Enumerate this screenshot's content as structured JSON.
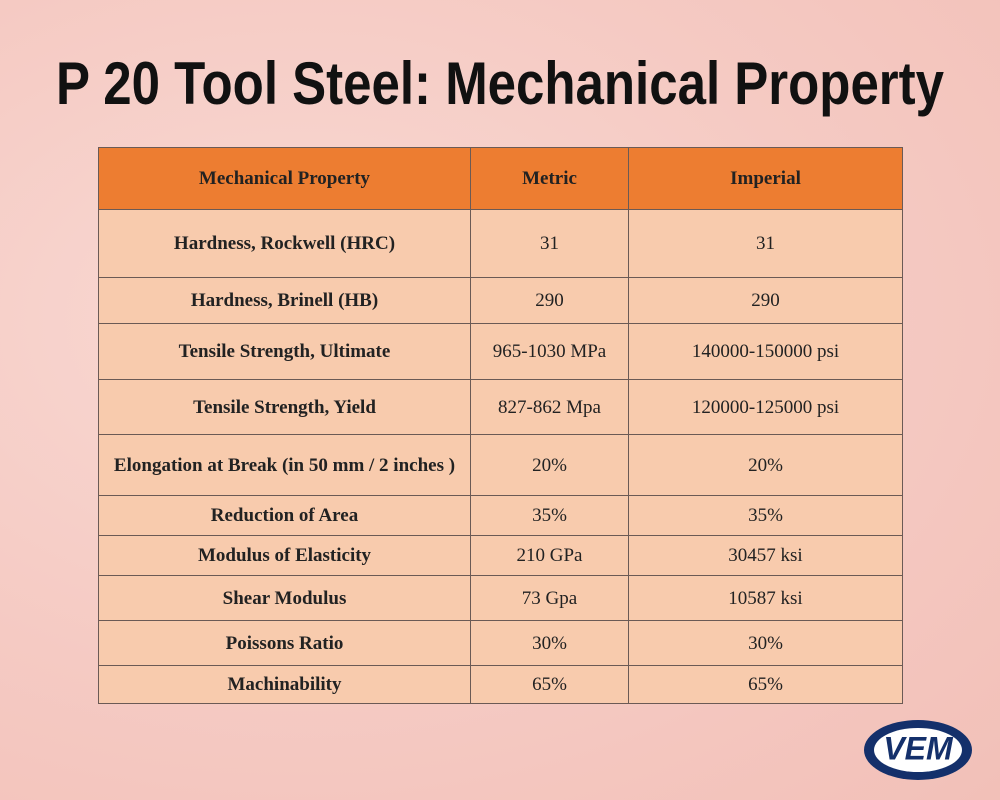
{
  "header": {
    "title": "P 20 Tool Steel: Mechanical Property"
  },
  "table": {
    "columns": [
      "Mechanical Property",
      "Metric",
      "Imperial"
    ],
    "rows": [
      [
        "Hardness, Rockwell (HRC)",
        "31",
        "31"
      ],
      [
        "Hardness, Brinell (HB)",
        "290",
        "290"
      ],
      [
        "Tensile Strength, Ultimate",
        "965-1030 MPa",
        "140000-150000 psi"
      ],
      [
        "Tensile Strength, Yield",
        "827-862 Mpa",
        "120000-125000 psi"
      ],
      [
        "Elongation at Break (in 50 mm / 2 inches )",
        "20%",
        "20%"
      ],
      [
        "Reduction of Area",
        "35%",
        "35%"
      ],
      [
        "Modulus of Elasticity",
        "210 GPa",
        "30457 ksi"
      ],
      [
        "Shear Modulus",
        "73 Gpa",
        "10587 ksi"
      ],
      [
        "Poissons Ratio",
        "30%",
        "30%"
      ],
      [
        "Machinability",
        "65%",
        "65%"
      ]
    ]
  },
  "logo": {
    "text": "VEM"
  }
}
